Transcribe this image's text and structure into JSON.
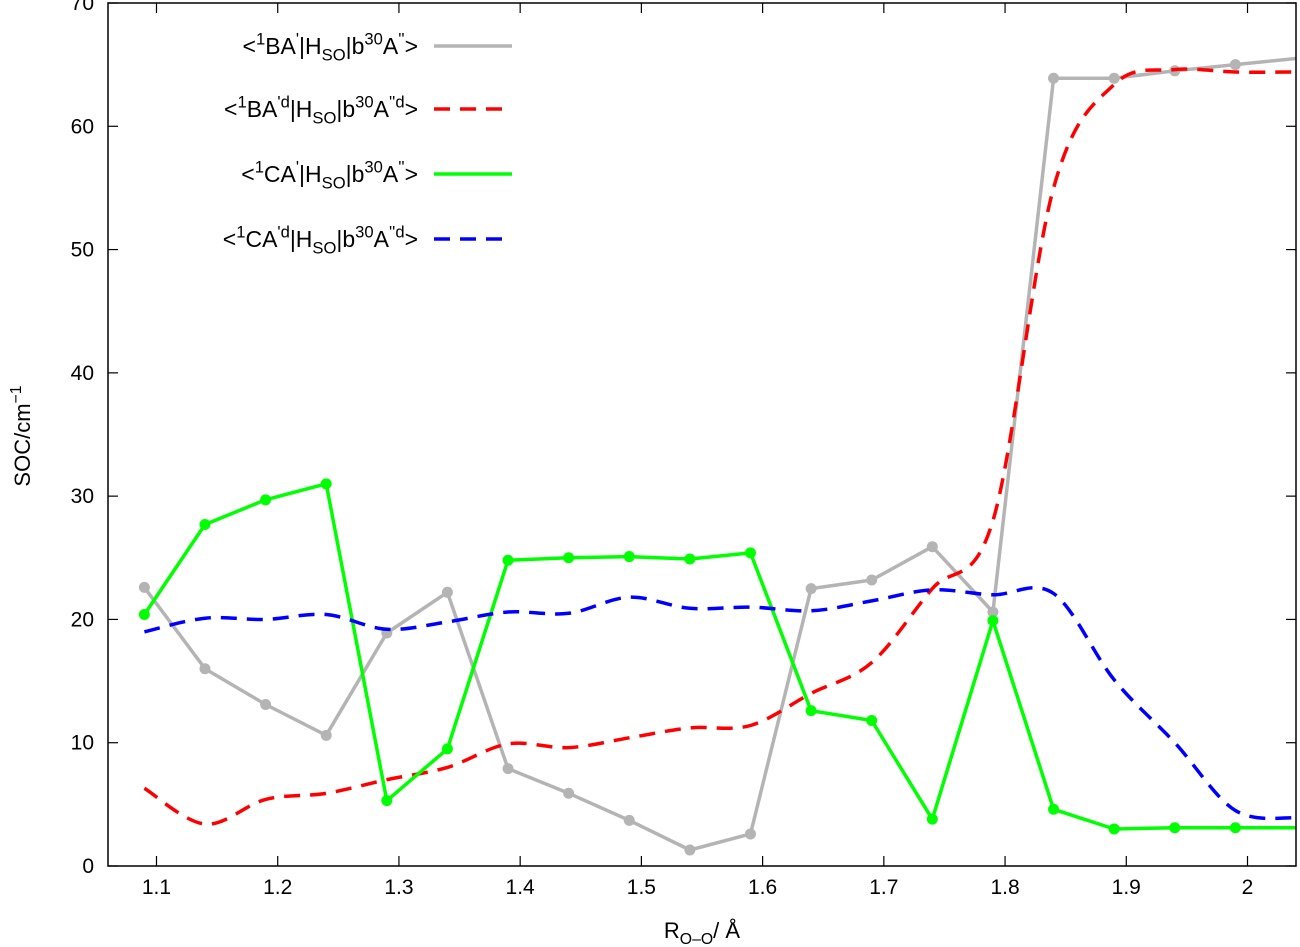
{
  "chart_data": {
    "type": "line",
    "xlabel": {
      "base": "R",
      "sub": "O–O",
      "rest": "/ Å"
    },
    "ylabel": {
      "base": "SOC/cm",
      "sup": "−1"
    },
    "xlim": [
      1.06,
      2.04
    ],
    "ylim": [
      0,
      70
    ],
    "x_ticks": [
      1.1,
      1.2,
      1.3,
      1.4,
      1.5,
      1.6,
      1.7,
      1.8,
      1.9,
      2.0
    ],
    "x_tick_labels": [
      "1.1",
      "1.2",
      "1.3",
      "1.4",
      "1.5",
      "1.6",
      "1.7",
      "1.8",
      "1.9",
      "2"
    ],
    "y_ticks": [
      0,
      10,
      20,
      30,
      40,
      50,
      60,
      70
    ],
    "y_tick_labels": [
      "0",
      "10",
      "20",
      "30",
      "40",
      "50",
      "60",
      "70"
    ],
    "grid": false,
    "legend_position": "top-left",
    "series": [
      {
        "name": "<1BA'|HSO|b30A''>",
        "legend": [
          [
            "t",
            "<"
          ],
          [
            "sup",
            "1"
          ],
          [
            "t",
            "BA"
          ],
          [
            "sup",
            "'"
          ],
          [
            "t",
            "|H"
          ],
          [
            "sub",
            "SO"
          ],
          [
            "t",
            "|b"
          ],
          [
            "sup",
            "30"
          ],
          [
            "t",
            "A"
          ],
          [
            "sup",
            "''"
          ],
          [
            "t",
            ">"
          ]
        ],
        "color": "#b4b4b4",
        "style": "solid",
        "markers": true,
        "x": [
          1.09,
          1.14,
          1.19,
          1.24,
          1.29,
          1.34,
          1.39,
          1.44,
          1.49,
          1.54,
          1.59,
          1.64,
          1.69,
          1.74,
          1.79,
          1.84,
          1.89,
          1.94,
          1.99,
          2.04
        ],
        "y": [
          22.6,
          16.0,
          13.1,
          10.6,
          18.9,
          22.2,
          7.9,
          5.9,
          3.7,
          1.3,
          2.6,
          22.5,
          23.2,
          25.9,
          20.6,
          63.9,
          63.9,
          64.5,
          65.0,
          65.5
        ]
      },
      {
        "name": "<1BA'd|HSO|b30A''d>",
        "legend": [
          [
            "t",
            "<"
          ],
          [
            "sup",
            "1"
          ],
          [
            "t",
            "BA"
          ],
          [
            "sup",
            "'d"
          ],
          [
            "t",
            "|H"
          ],
          [
            "sub",
            "SO"
          ],
          [
            "t",
            "|b"
          ],
          [
            "sup",
            "30"
          ],
          [
            "t",
            "A"
          ],
          [
            "sup",
            "''d"
          ],
          [
            "t",
            ">"
          ]
        ],
        "color": "#ff0000",
        "style": "dashed",
        "markers": false,
        "x": [
          1.09,
          1.14,
          1.19,
          1.24,
          1.29,
          1.34,
          1.39,
          1.44,
          1.49,
          1.54,
          1.59,
          1.64,
          1.69,
          1.74,
          1.79,
          1.84,
          1.89,
          1.94,
          1.99,
          2.04
        ],
        "y": [
          6.3,
          3.4,
          5.4,
          5.9,
          7.0,
          8.0,
          9.9,
          9.6,
          10.4,
          11.2,
          11.4,
          14.0,
          16.5,
          22.5,
          28.0,
          55.0,
          63.4,
          64.6,
          64.4,
          64.4
        ]
      },
      {
        "name": "<1CA'|HSO|b30A''>",
        "legend": [
          [
            "t",
            "<"
          ],
          [
            "sup",
            "1"
          ],
          [
            "t",
            "CA"
          ],
          [
            "sup",
            "'"
          ],
          [
            "t",
            "|H"
          ],
          [
            "sub",
            "SO"
          ],
          [
            "t",
            "|b"
          ],
          [
            "sup",
            "30"
          ],
          [
            "t",
            "A"
          ],
          [
            "sup",
            "''"
          ],
          [
            "t",
            ">"
          ]
        ],
        "color": "#00ff00",
        "style": "solid",
        "markers": true,
        "x": [
          1.09,
          1.14,
          1.19,
          1.24,
          1.29,
          1.34,
          1.39,
          1.44,
          1.49,
          1.54,
          1.59,
          1.64,
          1.69,
          1.74,
          1.79,
          1.84,
          1.89,
          1.94,
          1.99,
          2.04
        ],
        "y": [
          20.4,
          27.7,
          29.7,
          31.0,
          5.3,
          9.5,
          24.8,
          25.0,
          25.1,
          24.9,
          25.4,
          12.6,
          11.8,
          3.8,
          19.9,
          4.6,
          3.0,
          3.1,
          3.1,
          3.1
        ]
      },
      {
        "name": "<1CA'd|HSO|b30A''d>",
        "legend": [
          [
            "t",
            "<"
          ],
          [
            "sup",
            "1"
          ],
          [
            "t",
            "CA"
          ],
          [
            "sup",
            "'d"
          ],
          [
            "t",
            "|H"
          ],
          [
            "sub",
            "SO"
          ],
          [
            "t",
            "|b"
          ],
          [
            "sup",
            "30"
          ],
          [
            "t",
            "A"
          ],
          [
            "sup",
            "''d"
          ],
          [
            "t",
            ">"
          ]
        ],
        "color": "#0000ff",
        "style": "dashed",
        "markers": false,
        "x": [
          1.09,
          1.14,
          1.19,
          1.24,
          1.29,
          1.34,
          1.39,
          1.44,
          1.49,
          1.54,
          1.59,
          1.64,
          1.69,
          1.74,
          1.79,
          1.84,
          1.89,
          1.94,
          1.99,
          2.04
        ],
        "y": [
          19.0,
          20.1,
          20.0,
          20.4,
          19.2,
          19.8,
          20.6,
          20.5,
          21.8,
          20.9,
          21.0,
          20.7,
          21.5,
          22.4,
          22.0,
          22.1,
          15.1,
          10.0,
          4.5,
          3.9
        ]
      }
    ]
  }
}
